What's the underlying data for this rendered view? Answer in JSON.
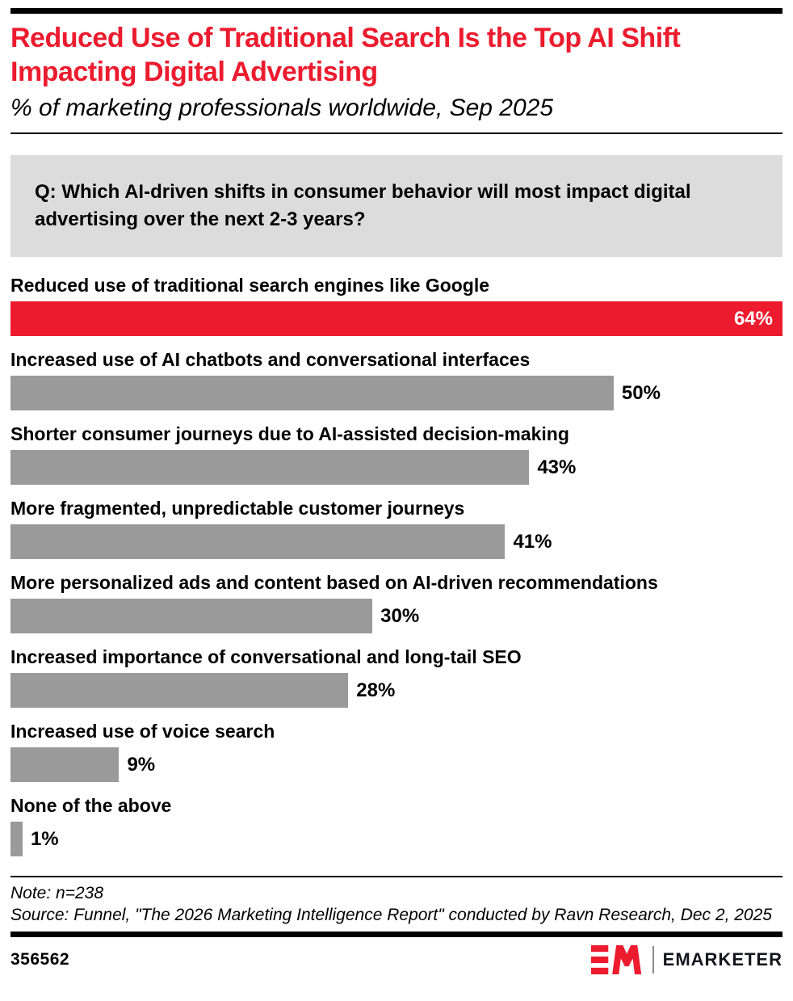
{
  "header": {
    "title": "Reduced Use of Traditional Search Is the Top AI Shift Impacting Digital Advertising",
    "subtitle": "% of marketing professionals worldwide, Sep 2025"
  },
  "question": "Q: Which AI-driven shifts in consumer behavior will most impact digital advertising over the next 2-3 years?",
  "chart_data": {
    "type": "bar",
    "orientation": "horizontal",
    "title": "Reduced Use of Traditional Search Is the Top AI Shift Impacting Digital Advertising",
    "subtitle": "% of marketing professionals worldwide, Sep 2025",
    "value_axis_max": 64,
    "value_suffix": "%",
    "highlight_color": "#EC1B2E",
    "bar_color": "#9A9A9A",
    "categories": [
      "Reduced use of traditional search engines like Google",
      "Increased use of AI chatbots and conversational interfaces",
      "Shorter consumer journeys due to AI-assisted decision-making",
      "More fragmented, unpredictable customer journeys",
      "More personalized ads and content based on AI-driven recommendations",
      "Increased importance of conversational and long-tail SEO",
      "Increased use of voice search",
      "None of the above"
    ],
    "values": [
      64,
      50,
      43,
      41,
      30,
      28,
      9,
      1
    ],
    "bars": [
      {
        "label": "Reduced use of traditional search engines like Google",
        "value": 64,
        "display": "64%",
        "highlight": true
      },
      {
        "label": "Increased use of AI chatbots and conversational interfaces",
        "value": 50,
        "display": "50%",
        "highlight": false
      },
      {
        "label": "Shorter consumer journeys due to AI-assisted decision-making",
        "value": 43,
        "display": "43%",
        "highlight": false
      },
      {
        "label": "More fragmented, unpredictable customer journeys",
        "value": 41,
        "display": "41%",
        "highlight": false
      },
      {
        "label": "More personalized ads and content based on AI-driven recommendations",
        "value": 30,
        "display": "30%",
        "highlight": false
      },
      {
        "label": "Increased importance of conversational and long-tail SEO",
        "value": 28,
        "display": "28%",
        "highlight": false
      },
      {
        "label": "Increased use of voice search",
        "value": 9,
        "display": "9%",
        "highlight": false
      },
      {
        "label": "None of the above",
        "value": 1,
        "display": "1%",
        "highlight": false
      }
    ]
  },
  "footer": {
    "note": "Note: n=238",
    "source": "Source: Funnel, \"The 2026 Marketing Intelligence Report\" conducted by Ravn Research, Dec 2, 2025",
    "chart_id": "356562",
    "brand": "EMARKETER"
  }
}
